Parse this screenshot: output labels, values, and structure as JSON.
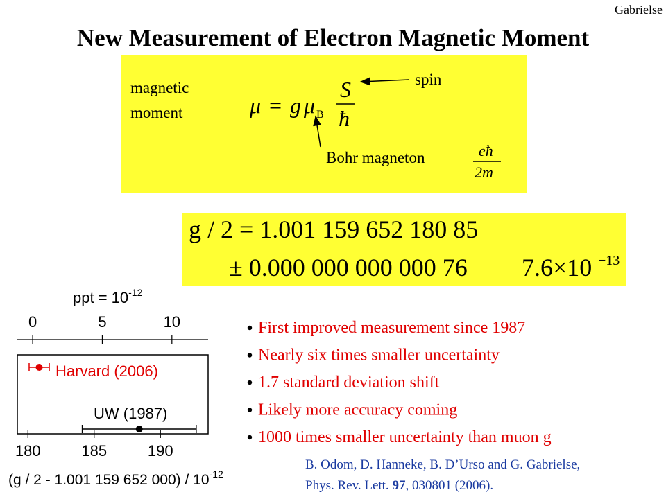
{
  "author": "Gabrielse",
  "title": "New Measurement of Electron Magnetic Moment",
  "definition": {
    "label_line1": "magnetic",
    "label_line2": "moment",
    "formula": {
      "mu": "μ⃗",
      "equals": "=",
      "g": "g",
      "muB": "μ",
      "sub": "B",
      "numerator": "S⃗",
      "denominator": "ħ"
    },
    "spin": "spin",
    "bohr": "Bohr magneton",
    "bohr_numerator": "eħ",
    "bohr_denominator": "2m"
  },
  "result": {
    "line1": "g / 2 = 1.001 159 652 180 85",
    "line2": "± 0.000 000 000 000 76",
    "relative": "7.6×10",
    "relative_exp": "−13"
  },
  "bullets": [
    "First improved measurement since 1987",
    "Nearly six times smaller uncertainty",
    "1.7 standard deviation shift",
    "Likely more accuracy coming",
    "1000 times smaller uncertainty than muon g"
  ],
  "reference": {
    "line1": "B. Odom, D. Hanneke, B. D’Urso and G. Gabrielse,",
    "line2_start": "Phys. Rev. Lett. ",
    "volume": "97",
    "line2_end": ", 030801 (2006)."
  },
  "chart_data": {
    "type": "errorbar",
    "top_label": "ppt = 10",
    "top_label_exp": "-12",
    "x2lim": [
      -1.1,
      12.6
    ],
    "x2ticks": [
      0,
      5,
      10
    ],
    "xlabel": "(g / 2 - 1.001 159 652 000)  / 10",
    "xlabel_exp": "-12",
    "xlim": [
      179.2,
      193.6
    ],
    "xticks": [
      180,
      185,
      190
    ],
    "series": [
      {
        "name": "Harvard (2006)",
        "color": "#e00000",
        "values": [
          180.85
        ],
        "errors": [
          0.76
        ]
      },
      {
        "name": "UW (1987)",
        "color": "#000000",
        "values": [
          188.4
        ],
        "errors": [
          4.3
        ]
      }
    ]
  }
}
